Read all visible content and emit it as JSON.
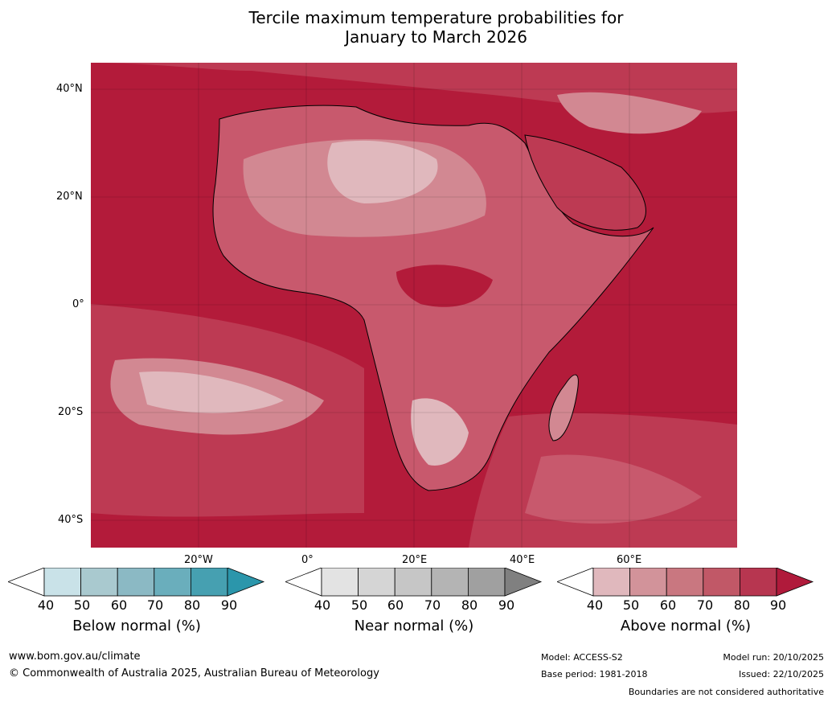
{
  "title": {
    "line1": "Tercile maximum temperature probabilities for",
    "line2": "January to March 2026"
  },
  "map": {
    "lat_labels": [
      "40°N",
      "20°N",
      "0°",
      "20°S",
      "40°S"
    ],
    "lon_labels": [
      "20°W",
      "0°",
      "20°E",
      "40°E",
      "60°E"
    ],
    "colors": {
      "above_90": "#b31b3a",
      "above_80": "#bd3a53",
      "above_70": "#c8596d",
      "above_60": "#d28892",
      "above_50": "#e0b8bd",
      "near": "#e4e4e4",
      "land_border": "#808080",
      "coast": "#000000"
    }
  },
  "colorbars": [
    {
      "label": "Below normal (%)",
      "ticks": [
        "40",
        "50",
        "60",
        "70",
        "80",
        "90"
      ],
      "colors": [
        "#ffffff",
        "#c9e2e8",
        "#a9c9cf",
        "#8bb9c4",
        "#6aaebc",
        "#46a0b1",
        "#2b96ab"
      ]
    },
    {
      "label": "Near normal (%)",
      "ticks": [
        "40",
        "50",
        "60",
        "70",
        "80",
        "90"
      ],
      "colors": [
        "#ffffff",
        "#e3e3e3",
        "#d5d5d5",
        "#c6c6c6",
        "#b4b4b4",
        "#a0a0a0",
        "#808080"
      ]
    },
    {
      "label": "Above normal (%)",
      "ticks": [
        "40",
        "50",
        "60",
        "70",
        "80",
        "90"
      ],
      "colors": [
        "#ffffff",
        "#e0b8bd",
        "#d2939a",
        "#c97780",
        "#c15867",
        "#b73650",
        "#b01a3b"
      ]
    }
  ],
  "footer": {
    "url": "www.bom.gov.au/climate",
    "copyright": "© Commonwealth of Australia 2025, Australian Bureau of Meteorology",
    "model": "Model: ACCESS-S2",
    "base_period": "Base period: 1981-2018",
    "model_run": "Model run: 20/10/2025",
    "issued": "Issued: 22/10/2025",
    "disclaimer": "Boundaries are not considered authoritative"
  }
}
